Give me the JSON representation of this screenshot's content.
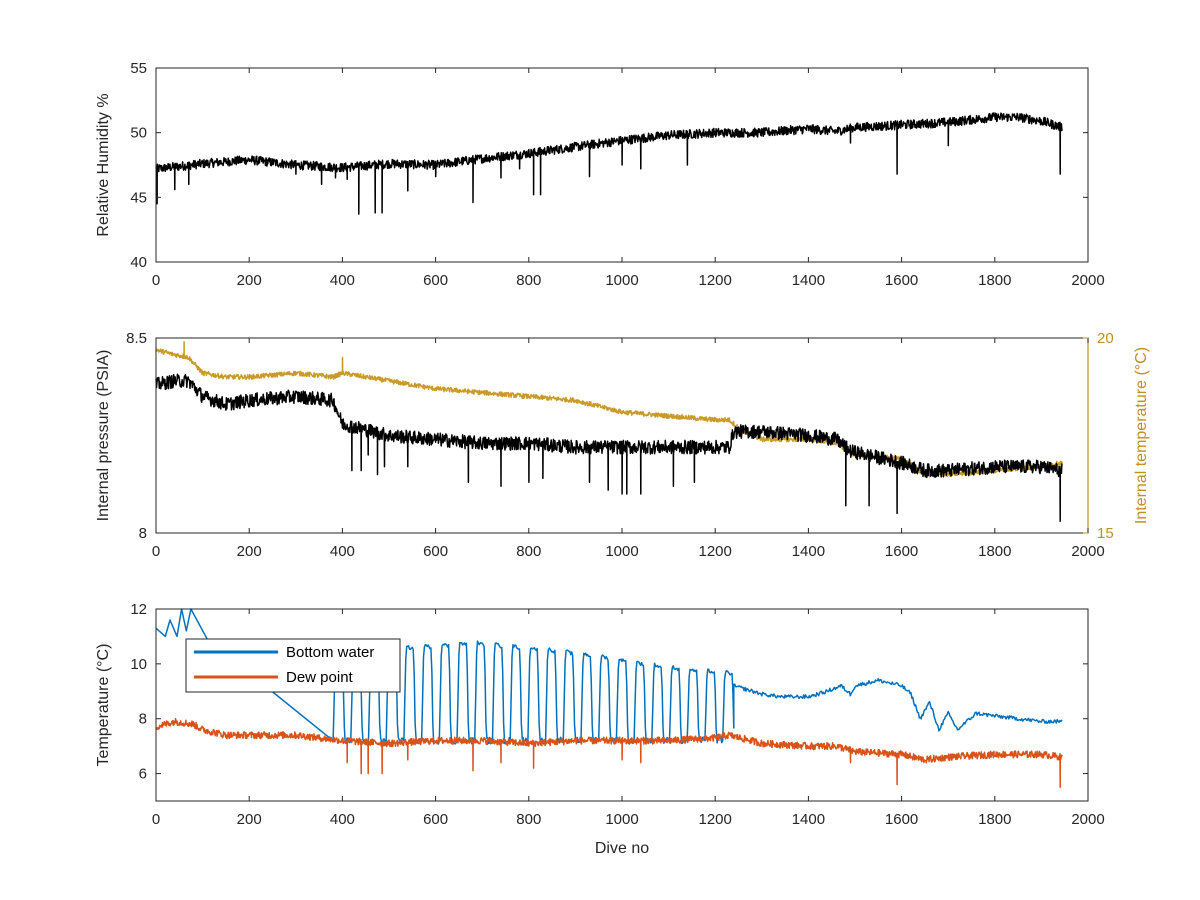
{
  "chart_data": [
    {
      "type": "line",
      "ylabel": "Relative Humidity %",
      "xlabel": "",
      "xlim": [
        0,
        2000
      ],
      "ylim": [
        40,
        55
      ],
      "xticks": [
        "0",
        "200",
        "400",
        "600",
        "800",
        "1000",
        "1200",
        "1400",
        "1600",
        "1800",
        "2000"
      ],
      "yticks": [
        "40",
        "45",
        "50",
        "55"
      ],
      "grid": false,
      "series": [
        {
          "color": "#000000",
          "trend": [
            [
              0,
              47.2
            ],
            [
              100,
              47.6
            ],
            [
              200,
              47.9
            ],
            [
              300,
              47.5
            ],
            [
              400,
              47.3
            ],
            [
              500,
              47.6
            ],
            [
              600,
              47.5
            ],
            [
              700,
              48.0
            ],
            [
              800,
              48.4
            ],
            [
              900,
              48.9
            ],
            [
              1000,
              49.4
            ],
            [
              1100,
              49.8
            ],
            [
              1200,
              50.0
            ],
            [
              1300,
              50.0
            ],
            [
              1400,
              50.3
            ],
            [
              1460,
              50.1
            ],
            [
              1500,
              50.4
            ],
            [
              1600,
              50.6
            ],
            [
              1700,
              50.8
            ],
            [
              1800,
              51.2
            ],
            [
              1850,
              51.2
            ],
            [
              1900,
              50.9
            ],
            [
              1945,
              50.4
            ]
          ],
          "noise": 0.7,
          "spikes": [
            [
              2,
              44.5
            ],
            [
              40,
              45.6
            ],
            [
              70,
              46.0
            ],
            [
              300,
              46.8
            ],
            [
              355,
              46.0
            ],
            [
              385,
              46.5
            ],
            [
              410,
              46.4
            ],
            [
              435,
              43.7
            ],
            [
              470,
              43.8
            ],
            [
              485,
              43.8
            ],
            [
              540,
              45.5
            ],
            [
              600,
              46.6
            ],
            [
              680,
              44.6
            ],
            [
              740,
              46.5
            ],
            [
              780,
              47.2
            ],
            [
              810,
              45.2
            ],
            [
              825,
              45.2
            ],
            [
              930,
              46.6
            ],
            [
              1000,
              47.5
            ],
            [
              1040,
              47.2
            ],
            [
              1140,
              47.5
            ],
            [
              1490,
              49.2
            ],
            [
              1590,
              46.8
            ],
            [
              1700,
              49.0
            ],
            [
              1940,
              46.8
            ]
          ]
        }
      ]
    },
    {
      "type": "line",
      "ylabel": "Internal pressure (PSIA)",
      "ylabel_right": "Internal temperature (°C)",
      "xlabel": "",
      "xlim": [
        0,
        2000
      ],
      "ylim": [
        8,
        8.5
      ],
      "ylim_right": [
        15,
        20
      ],
      "xticks": [
        "0",
        "200",
        "400",
        "600",
        "800",
        "1000",
        "1200",
        "1400",
        "1600",
        "1800",
        "2000"
      ],
      "yticks": [
        "8",
        "8.5"
      ],
      "yticks_right": [
        "15",
        "20"
      ],
      "right_axis_color": "#C09020",
      "grid": false,
      "series": [
        {
          "axis": "right",
          "color": "#C99A27",
          "trend": [
            [
              0,
              19.7
            ],
            [
              30,
              19.6
            ],
            [
              70,
              19.5
            ],
            [
              100,
              19.1
            ],
            [
              150,
              19.0
            ],
            [
              200,
              19.0
            ],
            [
              300,
              19.1
            ],
            [
              380,
              19.0
            ],
            [
              400,
              19.1
            ],
            [
              500,
              18.9
            ],
            [
              600,
              18.7
            ],
            [
              700,
              18.6
            ],
            [
              800,
              18.5
            ],
            [
              900,
              18.4
            ],
            [
              1000,
              18.1
            ],
            [
              1100,
              18.0
            ],
            [
              1200,
              17.9
            ],
            [
              1230,
              17.9
            ],
            [
              1260,
              17.6
            ],
            [
              1300,
              17.4
            ],
            [
              1400,
              17.4
            ],
            [
              1460,
              17.3
            ],
            [
              1500,
              17.0
            ],
            [
              1600,
              16.9
            ],
            [
              1650,
              16.5
            ],
            [
              1700,
              16.5
            ],
            [
              1800,
              16.6
            ],
            [
              1900,
              16.7
            ],
            [
              1945,
              16.8
            ]
          ],
          "noise": 0.12,
          "spikes": [
            [
              60,
              19.9
            ],
            [
              400,
              19.5
            ]
          ]
        },
        {
          "axis": "left",
          "color": "#000000",
          "trend": [
            [
              0,
              8.38
            ],
            [
              40,
              8.39
            ],
            [
              70,
              8.39
            ],
            [
              100,
              8.35
            ],
            [
              150,
              8.33
            ],
            [
              200,
              8.34
            ],
            [
              300,
              8.35
            ],
            [
              380,
              8.34
            ],
            [
              400,
              8.28
            ],
            [
              500,
              8.25
            ],
            [
              600,
              8.24
            ],
            [
              700,
              8.23
            ],
            [
              800,
              8.23
            ],
            [
              900,
              8.22
            ],
            [
              1000,
              8.22
            ],
            [
              1100,
              8.22
            ],
            [
              1200,
              8.22
            ],
            [
              1230,
              8.22
            ],
            [
              1240,
              8.26
            ],
            [
              1300,
              8.26
            ],
            [
              1400,
              8.25
            ],
            [
              1460,
              8.24
            ],
            [
              1490,
              8.21
            ],
            [
              1600,
              8.18
            ],
            [
              1650,
              8.16
            ],
            [
              1700,
              8.16
            ],
            [
              1800,
              8.17
            ],
            [
              1900,
              8.17
            ],
            [
              1945,
              8.16
            ]
          ],
          "noise": 0.035,
          "spikes": [
            [
              420,
              8.16
            ],
            [
              440,
              8.16
            ],
            [
              455,
              8.2
            ],
            [
              475,
              8.15
            ],
            [
              490,
              8.17
            ],
            [
              540,
              8.17
            ],
            [
              670,
              8.13
            ],
            [
              740,
              8.12
            ],
            [
              800,
              8.13
            ],
            [
              830,
              8.14
            ],
            [
              930,
              8.13
            ],
            [
              970,
              8.11
            ],
            [
              1000,
              8.1
            ],
            [
              1010,
              8.1
            ],
            [
              1040,
              8.1
            ],
            [
              1110,
              8.12
            ],
            [
              1155,
              8.13
            ],
            [
              1480,
              8.07
            ],
            [
              1530,
              8.07
            ],
            [
              1590,
              8.05
            ],
            [
              1940,
              8.03
            ]
          ]
        }
      ]
    },
    {
      "type": "line",
      "ylabel": "Temperature (°C)",
      "xlabel": "Dive no",
      "xlim": [
        0,
        2000
      ],
      "ylim": [
        5,
        12
      ],
      "xticks": [
        "0",
        "200",
        "400",
        "600",
        "800",
        "1000",
        "1200",
        "1400",
        "1600",
        "1800",
        "2000"
      ],
      "yticks": [
        "6",
        "8",
        "10",
        "12"
      ],
      "grid": false,
      "legend": "top-left",
      "series": [
        {
          "name": "Bottom water",
          "color": "#0072BD",
          "head": [
            [
              0,
              11.3
            ],
            [
              20,
              11.0
            ],
            [
              30,
              11.6
            ],
            [
              45,
              11.0
            ],
            [
              55,
              12.0
            ],
            [
              65,
              11.2
            ],
            [
              75,
              12.2
            ]
          ],
          "oscillation": {
            "start": 380,
            "end": 1240,
            "period": 38,
            "low": 7.2,
            "highs": [
              [
                380,
                10.0
              ],
              [
                520,
                10.6
              ],
              [
                680,
                10.8
              ],
              [
                820,
                10.6
              ],
              [
                960,
                10.3
              ],
              [
                1060,
                10.0
              ],
              [
                1160,
                9.8
              ],
              [
                1240,
                9.7
              ]
            ]
          },
          "tail": [
            [
              1240,
              9.2
            ],
            [
              1300,
              8.9
            ],
            [
              1340,
              8.8
            ],
            [
              1400,
              8.8
            ],
            [
              1440,
              9.0
            ],
            [
              1470,
              9.2
            ],
            [
              1490,
              8.9
            ],
            [
              1500,
              9.2
            ],
            [
              1550,
              9.4
            ],
            [
              1600,
              9.2
            ],
            [
              1620,
              8.9
            ],
            [
              1640,
              8.0
            ],
            [
              1660,
              8.6
            ],
            [
              1680,
              7.6
            ],
            [
              1700,
              8.2
            ],
            [
              1720,
              7.6
            ],
            [
              1760,
              8.2
            ],
            [
              1800,
              8.1
            ],
            [
              1850,
              8.0
            ],
            [
              1900,
              7.9
            ],
            [
              1945,
              7.9
            ]
          ]
        },
        {
          "name": "Dew point",
          "color": "#D95319",
          "trend": [
            [
              0,
              7.7
            ],
            [
              40,
              7.9
            ],
            [
              80,
              7.8
            ],
            [
              100,
              7.6
            ],
            [
              150,
              7.4
            ],
            [
              200,
              7.4
            ],
            [
              300,
              7.4
            ],
            [
              400,
              7.2
            ],
            [
              500,
              7.1
            ],
            [
              600,
              7.2
            ],
            [
              700,
              7.2
            ],
            [
              800,
              7.1
            ],
            [
              900,
              7.2
            ],
            [
              1000,
              7.2
            ],
            [
              1100,
              7.2
            ],
            [
              1200,
              7.3
            ],
            [
              1230,
              7.4
            ],
            [
              1300,
              7.1
            ],
            [
              1400,
              7.0
            ],
            [
              1460,
              7.0
            ],
            [
              1500,
              6.8
            ],
            [
              1600,
              6.7
            ],
            [
              1650,
              6.5
            ],
            [
              1700,
              6.6
            ],
            [
              1800,
              6.7
            ],
            [
              1900,
              6.7
            ],
            [
              1945,
              6.6
            ]
          ],
          "noise": 0.25,
          "spikes": [
            [
              410,
              6.4
            ],
            [
              440,
              6.0
            ],
            [
              455,
              6.0
            ],
            [
              485,
              6.0
            ],
            [
              540,
              6.5
            ],
            [
              680,
              6.1
            ],
            [
              740,
              6.4
            ],
            [
              810,
              6.2
            ],
            [
              1000,
              6.5
            ],
            [
              1040,
              6.4
            ],
            [
              1490,
              6.4
            ],
            [
              1590,
              5.6
            ],
            [
              1940,
              5.5
            ]
          ]
        }
      ]
    }
  ]
}
